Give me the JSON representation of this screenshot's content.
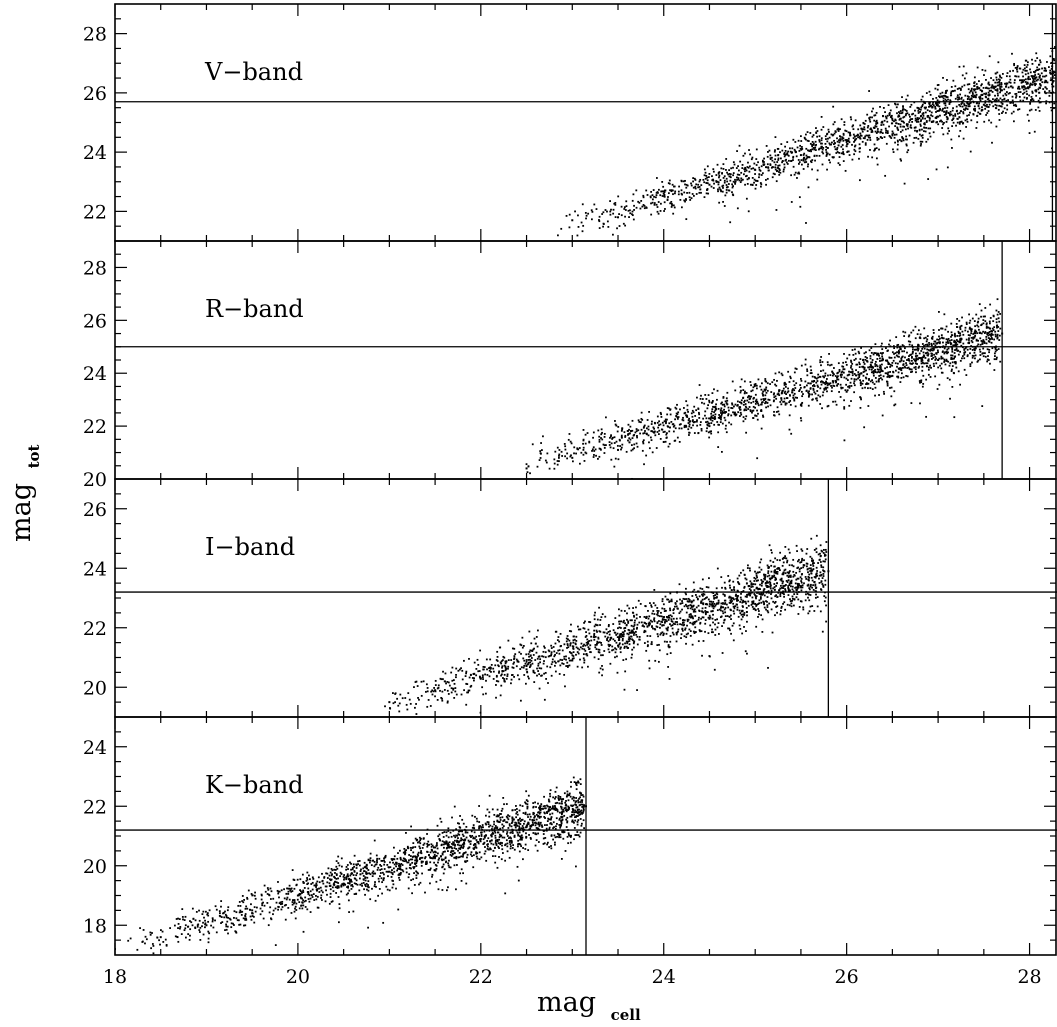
{
  "chart_data": {
    "type": "scatter",
    "xlabel": "mag",
    "xlabel_subscript": "cell",
    "ylabel": "mag",
    "ylabel_subscript": "tot",
    "xlim": [
      18,
      28.3
    ],
    "x_ticks": [
      18,
      20,
      22,
      24,
      26,
      28
    ],
    "shared_x_axis": true,
    "grid": false,
    "legend": "none",
    "marker_color": "#000000",
    "panels": [
      {
        "label": "V−band",
        "ylim": [
          21.0,
          29.0
        ],
        "y_ticks": [
          22,
          24,
          26,
          28
        ],
        "horizontal_line_y": 25.7,
        "vertical_line_x": 28.25,
        "distribution": {
          "x_min": 22.8,
          "x_max": 28.28,
          "slope": 0.96,
          "y_at_x_max": 26.6,
          "scatter_sigma": 0.35
        },
        "points": [
          [
            23.0,
            21.7
          ],
          [
            23.5,
            21.8
          ],
          [
            24.0,
            22.6
          ],
          [
            24.5,
            22.9
          ],
          [
            25.0,
            23.4
          ],
          [
            25.5,
            23.9
          ],
          [
            26.0,
            24.2
          ],
          [
            26.5,
            24.6
          ],
          [
            27.0,
            25.2
          ],
          [
            27.5,
            25.6
          ],
          [
            28.0,
            26.2
          ],
          [
            28.25,
            26.7
          ]
        ]
      },
      {
        "label": "R−band",
        "ylim": [
          20.0,
          29.0
        ],
        "y_ticks": [
          20,
          22,
          24,
          26,
          28
        ],
        "horizontal_line_y": 25.0,
        "vertical_line_x": 27.7,
        "distribution": {
          "x_min": 22.3,
          "x_max": 27.68,
          "slope": 0.95,
          "y_at_x_max": 25.5,
          "scatter_sigma": 0.4
        },
        "points": [
          [
            22.5,
            20.4
          ],
          [
            23.0,
            20.8
          ],
          [
            23.5,
            21.1
          ],
          [
            24.0,
            21.4
          ],
          [
            24.5,
            22.0
          ],
          [
            25.0,
            22.4
          ],
          [
            25.5,
            22.8
          ],
          [
            26.0,
            23.3
          ],
          [
            26.5,
            23.9
          ],
          [
            27.0,
            24.5
          ],
          [
            27.5,
            25.2
          ],
          [
            27.7,
            25.5
          ]
        ]
      },
      {
        "label": "I−band",
        "ylim": [
          19.0,
          27.0
        ],
        "y_ticks": [
          20,
          22,
          24,
          26
        ],
        "horizontal_line_y": 23.2,
        "vertical_line_x": 25.8,
        "distribution": {
          "x_min": 20.8,
          "x_max": 25.78,
          "slope": 0.93,
          "y_at_x_max": 23.9,
          "scatter_sigma": 0.4
        },
        "points": [
          [
            21.0,
            19.5
          ],
          [
            21.5,
            19.9
          ],
          [
            22.0,
            20.3
          ],
          [
            22.5,
            20.6
          ],
          [
            23.0,
            20.9
          ],
          [
            23.5,
            21.4
          ],
          [
            24.0,
            21.8
          ],
          [
            24.5,
            22.3
          ],
          [
            25.0,
            22.8
          ],
          [
            25.5,
            23.4
          ],
          [
            25.8,
            23.9
          ]
        ]
      },
      {
        "label": "K−band",
        "ylim": [
          17.0,
          25.0
        ],
        "y_ticks": [
          18,
          20,
          22,
          24
        ],
        "horizontal_line_y": 21.2,
        "vertical_line_x": 23.15,
        "distribution": {
          "x_min": 18.0,
          "x_max": 23.13,
          "slope": 0.95,
          "y_at_x_max": 22.0,
          "scatter_sigma": 0.35
        },
        "points": [
          [
            18.0,
            17.2
          ],
          [
            18.5,
            17.6
          ],
          [
            19.0,
            18.0
          ],
          [
            19.5,
            18.5
          ],
          [
            20.0,
            19.0
          ],
          [
            20.5,
            19.4
          ],
          [
            21.0,
            19.8
          ],
          [
            21.5,
            20.3
          ],
          [
            22.0,
            20.9
          ],
          [
            22.5,
            21.3
          ],
          [
            23.0,
            21.8
          ],
          [
            23.15,
            22.0
          ]
        ]
      }
    ]
  }
}
